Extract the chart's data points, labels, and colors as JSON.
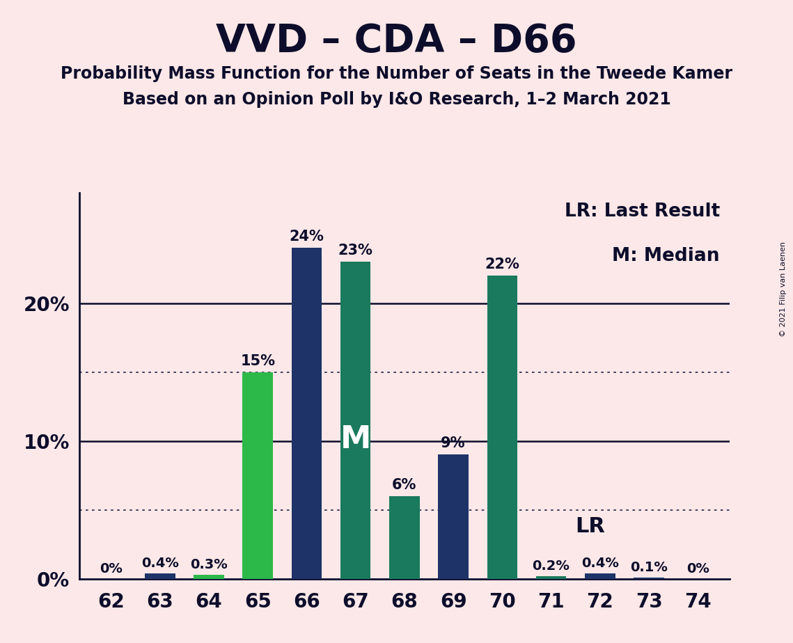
{
  "title": "VVD – CDA – D66",
  "subtitle1": "Probability Mass Function for the Number of Seats in the Tweede Kamer",
  "subtitle2": "Based on an Opinion Poll by I&O Research, 1–2 March 2021",
  "copyright": "© 2021 Filip van Laenen",
  "categories": [
    62,
    63,
    64,
    65,
    66,
    67,
    68,
    69,
    70,
    71,
    72,
    73,
    74
  ],
  "values": [
    0.0,
    0.4,
    0.3,
    15.0,
    24.0,
    23.0,
    6.0,
    9.0,
    22.0,
    0.2,
    0.4,
    0.1,
    0.0
  ],
  "labels": [
    "0%",
    "0.4%",
    "0.3%",
    "15%",
    "24%",
    "23%",
    "6%",
    "9%",
    "22%",
    "0.2%",
    "0.4%",
    "0.1%",
    "0%"
  ],
  "colors": [
    "#1e3368",
    "#1e3368",
    "#2db84a",
    "#2db84a",
    "#1e3368",
    "#1a7a5e",
    "#1a7a5e",
    "#1e3368",
    "#1a7a5e",
    "#1a7a5e",
    "#1e3368",
    "#1e3368",
    "#1e3368"
  ],
  "background_color": "#fce8e8",
  "bar_width": 0.62,
  "ylim": [
    0,
    28
  ],
  "dotted_lines": [
    5.0,
    15.0
  ],
  "solid_lines": [
    10.0,
    20.0
  ],
  "yticks": [
    0,
    10,
    20
  ],
  "ytick_labels": [
    "0%",
    "10%",
    "20%"
  ],
  "median_seat": 67,
  "lr_seat": 71,
  "legend_lr": "LR: Last Result",
  "legend_m": "M: Median",
  "title_fontsize": 40,
  "subtitle_fontsize": 17,
  "label_fontsize": 15,
  "axis_fontsize": 20,
  "text_color": "#0d0d2b"
}
